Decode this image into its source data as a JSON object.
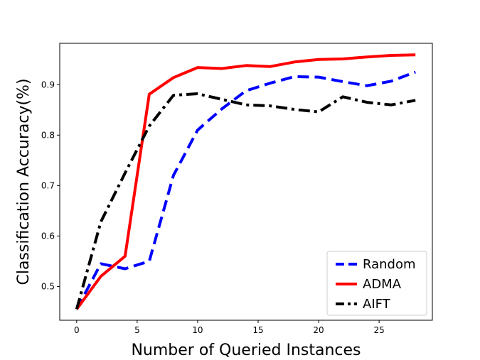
{
  "chart_data": {
    "type": "line",
    "xlabel": "Number of Queried Instances",
    "ylabel": "Classification Accuracy(%)",
    "xlim": [
      -1.4,
      29.4
    ],
    "ylim": [
      0.433,
      0.982
    ],
    "xticks": [
      0,
      5,
      10,
      15,
      20,
      25
    ],
    "yticks": [
      0.5,
      0.6,
      0.7,
      0.8,
      0.9
    ],
    "xtick_labels": [
      "0",
      "5",
      "10",
      "15",
      "20",
      "25"
    ],
    "ytick_labels": [
      "0.5",
      "0.6",
      "0.7",
      "0.8",
      "0.9"
    ],
    "legend_position": "lower-right",
    "series": [
      {
        "name": "Random",
        "color": "#0000ff",
        "style": "dashed",
        "x": [
          0,
          2,
          4,
          6,
          8,
          10,
          12,
          14,
          16,
          18,
          20,
          22,
          24,
          26,
          28
        ],
        "y": [
          0.455,
          0.545,
          0.535,
          0.55,
          0.72,
          0.81,
          0.852,
          0.888,
          0.903,
          0.916,
          0.915,
          0.906,
          0.898,
          0.907,
          0.925
        ]
      },
      {
        "name": "ADMA",
        "color": "#ff0000",
        "style": "solid",
        "x": [
          0,
          2,
          4,
          6,
          8,
          10,
          12,
          14,
          16,
          18,
          20,
          22,
          24,
          26,
          28
        ],
        "y": [
          0.455,
          0.52,
          0.56,
          0.881,
          0.914,
          0.934,
          0.932,
          0.938,
          0.936,
          0.945,
          0.95,
          0.951,
          0.955,
          0.958,
          0.959
        ]
      },
      {
        "name": "AIFT",
        "color": "#000000",
        "style": "dashdot",
        "x": [
          0,
          2,
          4,
          6,
          8,
          10,
          12,
          14,
          16,
          18,
          20,
          22,
          24,
          26,
          28
        ],
        "y": [
          0.455,
          0.628,
          0.725,
          0.818,
          0.879,
          0.882,
          0.871,
          0.86,
          0.858,
          0.851,
          0.846,
          0.876,
          0.865,
          0.86,
          0.869
        ]
      }
    ]
  }
}
